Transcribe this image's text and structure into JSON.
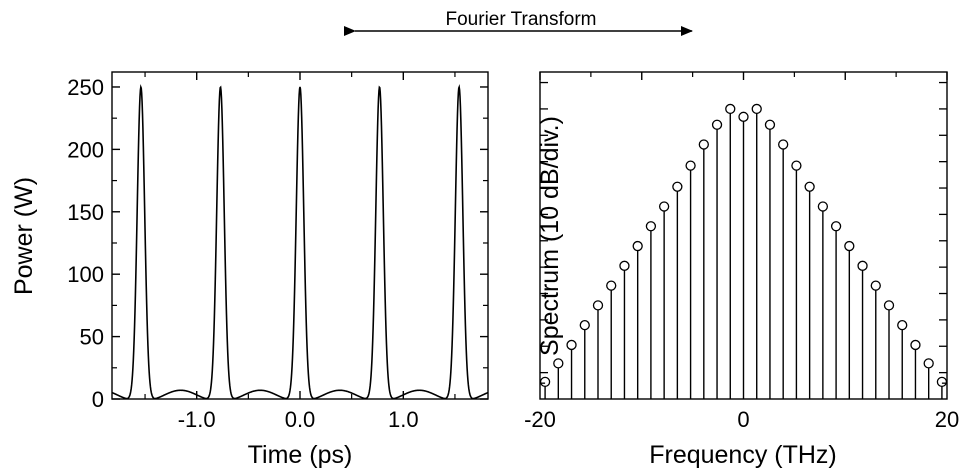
{
  "header": {
    "arrow_label": "Fourier Transform"
  },
  "chart_data": [
    {
      "type": "line",
      "xlabel": "Time (ps)",
      "ylabel": "Power (W)",
      "xlim": [
        -1.82,
        1.82
      ],
      "ylim": [
        0,
        262
      ],
      "x_ticks": [
        -1.0,
        0.0,
        1.0
      ],
      "x_tick_labels": [
        "-1.0",
        "0.0",
        "1.0"
      ],
      "y_ticks": [
        0,
        50,
        100,
        150,
        200,
        250
      ],
      "y_tick_labels": [
        "0",
        "50",
        "100",
        "150",
        "200",
        "250"
      ],
      "grid": false,
      "series": [
        {
          "description_of_shape": "pulse train",
          "peak_positions": [
            -1.54,
            -0.77,
            0.0,
            0.77,
            1.54
          ],
          "peak_value": 250,
          "pulse_fwhm_ps": 0.085,
          "side_lobe_max": 7,
          "values": []
        }
      ]
    },
    {
      "type": "stem",
      "xlabel": "Frequency (THz)",
      "ylabel": "Spectrum (10 dB/div.)",
      "xlim": [
        -20,
        20
      ],
      "ylim": [
        0,
        12.4
      ],
      "x_ticks": [
        -20,
        -10,
        0,
        10,
        20
      ],
      "x_tick_labels": [
        "-20",
        "",
        "0",
        "",
        "20"
      ],
      "y_tick_labels": [],
      "grid": false,
      "x": [
        -19.5,
        -18.2,
        -16.9,
        -15.6,
        -14.3,
        -13.0,
        -11.7,
        -10.4,
        -9.1,
        -7.8,
        -6.5,
        -5.2,
        -3.9,
        -2.6,
        -1.3,
        0.0,
        1.3,
        2.6,
        3.9,
        5.2,
        6.5,
        7.8,
        9.1,
        10.4,
        11.7,
        13.0,
        14.3,
        15.6,
        16.9,
        18.2,
        19.5
      ],
      "values": [
        0.65,
        1.35,
        2.05,
        2.8,
        3.55,
        4.3,
        5.05,
        5.8,
        6.55,
        7.3,
        8.05,
        8.85,
        9.65,
        10.4,
        11.0,
        10.7,
        11.0,
        10.4,
        9.65,
        8.85,
        8.05,
        7.3,
        6.55,
        5.8,
        5.05,
        4.3,
        3.55,
        2.8,
        2.05,
        1.35,
        0.65
      ]
    }
  ]
}
